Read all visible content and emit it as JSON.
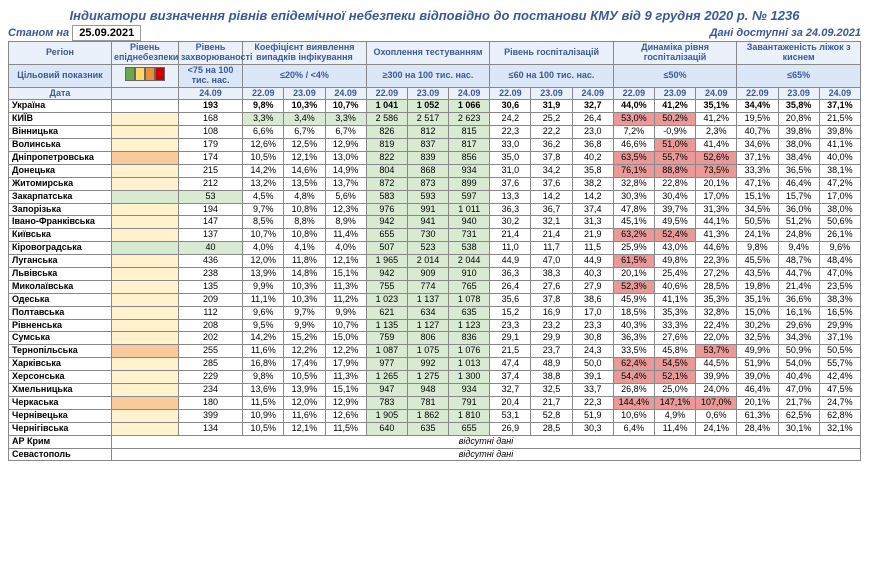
{
  "title": "Індикатори визначення рівнів епідемічної небезпеки відповідно до постанови КМУ від 9 грудня 2020 р. № 1236",
  "asof_label": "Станом на",
  "asof_date": "25.09.2021",
  "avail_label": "Дані доступні за 24.09.2021",
  "headers": {
    "region": "Регіон",
    "level": "Рівень епіднебезпеки",
    "incidence": "Рівень захворюваності",
    "detection": "Коефіцієнт виявлення випадків інфікування",
    "testing": "Охоплення тестуванням",
    "hosp": "Рівень госпіталізацій",
    "hosp_dyn": "Динаміка рівня госпіталізацій",
    "beds": "Завантаженість ліжок з киснем",
    "target": "Цільовий показник",
    "date": "Дата",
    "t_incidence": "<75 на 100 тис. нас.",
    "t_detection": "≤20% / <4%",
    "t_testing": "≥300 на 100 тис. нас.",
    "t_hosp": "≤60 на 100 тис. нас.",
    "t_hosp_dyn": "≤50%",
    "t_beds": "≤65%"
  },
  "dates": {
    "d1": "22.09",
    "d2": "23.09",
    "d3": "24.09"
  },
  "legend_colors": [
    "#6aa84f",
    "#ffd966",
    "#e69138",
    "#cc0000"
  ],
  "highlight": {
    "green": "#d9ead3",
    "yellow": "#fff2cc",
    "orange": "#f9cb9c",
    "red": "#ea9999"
  },
  "nodata_text": "відсутні дані",
  "rows": [
    {
      "name": "Україна",
      "lvl": "",
      "inc": "193",
      "bold": true,
      "det": [
        "9,8%",
        "10,3%",
        "10,7%"
      ],
      "test": [
        "1 041",
        "1 052",
        "1 066"
      ],
      "test_hl": [
        "g",
        "g",
        "g"
      ],
      "hosp": [
        "30,6",
        "31,9",
        "32,7"
      ],
      "dyn": [
        "44,0%",
        "41,2%",
        "35,1%"
      ],
      "dyn_hl": [
        "",
        "",
        ""
      ],
      "bed": [
        "34,4%",
        "35,8%",
        "37,1%"
      ]
    },
    {
      "name": "КИЇВ",
      "lvl": "yellow",
      "inc": "168",
      "det": [
        "3,3%",
        "3,4%",
        "3,3%"
      ],
      "det_hl": [
        "g",
        "g",
        "g"
      ],
      "test": [
        "2 586",
        "2 517",
        "2 623"
      ],
      "test_hl": [
        "g",
        "g",
        "g"
      ],
      "hosp": [
        "24,2",
        "25,2",
        "26,4"
      ],
      "dyn": [
        "53,0%",
        "50,2%",
        "41,2%"
      ],
      "dyn_hl": [
        "r",
        "r",
        ""
      ],
      "bed": [
        "19,5%",
        "20,8%",
        "21,5%"
      ]
    },
    {
      "name": "Вінницька",
      "lvl": "yellow",
      "inc": "108",
      "det": [
        "6,6%",
        "6,7%",
        "6,7%"
      ],
      "test": [
        "826",
        "812",
        "815"
      ],
      "test_hl": [
        "g",
        "g",
        "g"
      ],
      "hosp": [
        "22,3",
        "22,2",
        "23,0"
      ],
      "dyn": [
        "7,2%",
        "-0,9%",
        "2,3%"
      ],
      "dyn_hl": [
        "",
        "",
        ""
      ],
      "bed": [
        "40,7%",
        "39,8%",
        "39,8%"
      ]
    },
    {
      "name": "Волинська",
      "lvl": "yellow",
      "inc": "179",
      "det": [
        "12,6%",
        "12,5%",
        "12,9%"
      ],
      "test": [
        "819",
        "837",
        "817"
      ],
      "test_hl": [
        "g",
        "g",
        "g"
      ],
      "hosp": [
        "33,0",
        "36,2",
        "36,8"
      ],
      "dyn": [
        "46,6%",
        "51,0%",
        "41,4%"
      ],
      "dyn_hl": [
        "",
        "r",
        ""
      ],
      "bed": [
        "34,6%",
        "38,0%",
        "41,1%"
      ]
    },
    {
      "name": "Дніпропетровська",
      "lvl": "orange",
      "inc": "174",
      "det": [
        "10,5%",
        "12,1%",
        "13,0%"
      ],
      "test": [
        "822",
        "839",
        "856"
      ],
      "test_hl": [
        "g",
        "g",
        "g"
      ],
      "hosp": [
        "35,0",
        "37,8",
        "40,2"
      ],
      "dyn": [
        "63,5%",
        "55,7%",
        "52,6%"
      ],
      "dyn_hl": [
        "r",
        "r",
        "r"
      ],
      "bed": [
        "37,1%",
        "38,4%",
        "40,0%"
      ]
    },
    {
      "name": "Донецька",
      "lvl": "yellow",
      "inc": "215",
      "det": [
        "14,2%",
        "14,6%",
        "14,9%"
      ],
      "test": [
        "804",
        "868",
        "934"
      ],
      "test_hl": [
        "g",
        "g",
        "g"
      ],
      "hosp": [
        "31,0",
        "34,2",
        "35,8"
      ],
      "dyn": [
        "76,1%",
        "88,8%",
        "73,5%"
      ],
      "dyn_hl": [
        "r",
        "r",
        "r"
      ],
      "bed": [
        "33,3%",
        "36,5%",
        "38,1%"
      ]
    },
    {
      "name": "Житомирська",
      "lvl": "yellow",
      "inc": "212",
      "det": [
        "13,2%",
        "13,5%",
        "13,7%"
      ],
      "test": [
        "872",
        "873",
        "899"
      ],
      "test_hl": [
        "g",
        "g",
        "g"
      ],
      "hosp": [
        "37,6",
        "37,6",
        "38,2"
      ],
      "dyn": [
        "32,8%",
        "22,8%",
        "20,1%"
      ],
      "dyn_hl": [
        "",
        "",
        ""
      ],
      "bed": [
        "47,1%",
        "46,4%",
        "47,2%"
      ]
    },
    {
      "name": "Закарпатська",
      "lvl": "green",
      "inc": "53",
      "inc_hl": "g",
      "det": [
        "4,5%",
        "4,8%",
        "5,6%"
      ],
      "test": [
        "583",
        "593",
        "597"
      ],
      "test_hl": [
        "g",
        "g",
        "g"
      ],
      "hosp": [
        "13,3",
        "14,2",
        "14,2"
      ],
      "dyn": [
        "30,3%",
        "30,4%",
        "17,0%"
      ],
      "dyn_hl": [
        "",
        "",
        ""
      ],
      "bed": [
        "15,1%",
        "15,7%",
        "17,0%"
      ]
    },
    {
      "name": "Запорізька",
      "lvl": "yellow",
      "inc": "194",
      "det": [
        "9,7%",
        "10,8%",
        "12,3%"
      ],
      "test": [
        "976",
        "991",
        "1 011"
      ],
      "test_hl": [
        "g",
        "g",
        "g"
      ],
      "hosp": [
        "36,3",
        "36,7",
        "37,4"
      ],
      "dyn": [
        "47,8%",
        "39,7%",
        "31,3%"
      ],
      "dyn_hl": [
        "",
        "",
        ""
      ],
      "bed": [
        "34,5%",
        "36,0%",
        "38,0%"
      ]
    },
    {
      "name": "Івано-Франківська",
      "lvl": "yellow",
      "inc": "147",
      "det": [
        "8,5%",
        "8,8%",
        "8,9%"
      ],
      "test": [
        "942",
        "941",
        "940"
      ],
      "test_hl": [
        "g",
        "g",
        "g"
      ],
      "hosp": [
        "30,2",
        "32,1",
        "31,3"
      ],
      "dyn": [
        "45,1%",
        "49,5%",
        "44,1%"
      ],
      "dyn_hl": [
        "",
        "",
        ""
      ],
      "bed": [
        "50,5%",
        "51,2%",
        "50,6%"
      ]
    },
    {
      "name": "Київська",
      "lvl": "yellow",
      "inc": "137",
      "det": [
        "10,7%",
        "10,8%",
        "11,4%"
      ],
      "test": [
        "655",
        "730",
        "731"
      ],
      "test_hl": [
        "g",
        "g",
        "g"
      ],
      "hosp": [
        "21,4",
        "21,4",
        "21,9"
      ],
      "dyn": [
        "63,2%",
        "52,4%",
        "41,3%"
      ],
      "dyn_hl": [
        "r",
        "r",
        ""
      ],
      "bed": [
        "24,1%",
        "24,8%",
        "26,1%"
      ]
    },
    {
      "name": "Кіровоградська",
      "lvl": "green",
      "inc": "40",
      "inc_hl": "g",
      "det": [
        "4,0%",
        "4,1%",
        "4,0%"
      ],
      "test": [
        "507",
        "523",
        "538"
      ],
      "test_hl": [
        "g",
        "g",
        "g"
      ],
      "hosp": [
        "11,0",
        "11,7",
        "11,5"
      ],
      "dyn": [
        "25,9%",
        "43,0%",
        "44,6%"
      ],
      "dyn_hl": [
        "",
        "",
        ""
      ],
      "bed": [
        "9,8%",
        "9,4%",
        "9,6%"
      ]
    },
    {
      "name": "Луганська",
      "lvl": "yellow",
      "inc": "436",
      "det": [
        "12,0%",
        "11,8%",
        "12,1%"
      ],
      "test": [
        "1 965",
        "2 014",
        "2 044"
      ],
      "test_hl": [
        "g",
        "g",
        "g"
      ],
      "hosp": [
        "44,9",
        "47,0",
        "44,9"
      ],
      "dyn": [
        "61,5%",
        "49,8%",
        "22,3%"
      ],
      "dyn_hl": [
        "r",
        "",
        ""
      ],
      "bed": [
        "45,5%",
        "48,7%",
        "48,4%"
      ]
    },
    {
      "name": "Львівська",
      "lvl": "yellow",
      "inc": "238",
      "det": [
        "13,9%",
        "14,8%",
        "15,1%"
      ],
      "test": [
        "942",
        "909",
        "910"
      ],
      "test_hl": [
        "g",
        "g",
        "g"
      ],
      "hosp": [
        "36,3",
        "38,3",
        "40,3"
      ],
      "dyn": [
        "20,1%",
        "25,4%",
        "27,2%"
      ],
      "dyn_hl": [
        "",
        "",
        ""
      ],
      "bed": [
        "43,5%",
        "44,7%",
        "47,0%"
      ]
    },
    {
      "name": "Миколаївська",
      "lvl": "yellow",
      "inc": "135",
      "det": [
        "9,9%",
        "10,3%",
        "11,3%"
      ],
      "test": [
        "755",
        "774",
        "765"
      ],
      "test_hl": [
        "g",
        "g",
        "g"
      ],
      "hosp": [
        "26,4",
        "27,6",
        "27,9"
      ],
      "dyn": [
        "52,3%",
        "40,6%",
        "28,5%"
      ],
      "dyn_hl": [
        "r",
        "",
        ""
      ],
      "bed": [
        "19,8%",
        "21,4%",
        "23,5%"
      ]
    },
    {
      "name": "Одеська",
      "lvl": "yellow",
      "inc": "209",
      "det": [
        "11,1%",
        "10,3%",
        "11,2%"
      ],
      "test": [
        "1 023",
        "1 137",
        "1 078"
      ],
      "test_hl": [
        "g",
        "g",
        "g"
      ],
      "hosp": [
        "35,6",
        "37,8",
        "38,6"
      ],
      "dyn": [
        "45,9%",
        "41,1%",
        "35,3%"
      ],
      "dyn_hl": [
        "",
        "",
        ""
      ],
      "bed": [
        "35,1%",
        "36,6%",
        "38,3%"
      ]
    },
    {
      "name": "Полтавська",
      "lvl": "yellow",
      "inc": "112",
      "det": [
        "9,6%",
        "9,7%",
        "9,9%"
      ],
      "test": [
        "621",
        "634",
        "635"
      ],
      "test_hl": [
        "g",
        "g",
        "g"
      ],
      "hosp": [
        "15,2",
        "16,9",
        "17,0"
      ],
      "dyn": [
        "18,5%",
        "35,3%",
        "32,8%"
      ],
      "dyn_hl": [
        "",
        "",
        ""
      ],
      "bed": [
        "15,0%",
        "16,1%",
        "16,5%"
      ]
    },
    {
      "name": "Рівненська",
      "lvl": "yellow",
      "inc": "208",
      "det": [
        "9,5%",
        "9,9%",
        "10,7%"
      ],
      "test": [
        "1 135",
        "1 127",
        "1 123"
      ],
      "test_hl": [
        "g",
        "g",
        "g"
      ],
      "hosp": [
        "23,3",
        "23,2",
        "23,3"
      ],
      "dyn": [
        "40,3%",
        "33,3%",
        "22,4%"
      ],
      "dyn_hl": [
        "",
        "",
        ""
      ],
      "bed": [
        "30,2%",
        "29,6%",
        "29,9%"
      ]
    },
    {
      "name": "Сумська",
      "lvl": "yellow",
      "inc": "202",
      "det": [
        "14,2%",
        "15,2%",
        "15,0%"
      ],
      "test": [
        "759",
        "806",
        "836"
      ],
      "test_hl": [
        "g",
        "g",
        "g"
      ],
      "hosp": [
        "29,1",
        "29,9",
        "30,8"
      ],
      "dyn": [
        "36,3%",
        "27,6%",
        "22,0%"
      ],
      "dyn_hl": [
        "",
        "",
        ""
      ],
      "bed": [
        "32,5%",
        "34,3%",
        "37,1%"
      ]
    },
    {
      "name": "Тернопільська",
      "lvl": "orange",
      "inc": "255",
      "det": [
        "11,6%",
        "12,2%",
        "12,2%"
      ],
      "test": [
        "1 087",
        "1 075",
        "1 076"
      ],
      "test_hl": [
        "g",
        "g",
        "g"
      ],
      "hosp": [
        "21,5",
        "23,7",
        "24,3"
      ],
      "dyn": [
        "33,5%",
        "45,8%",
        "53,7%"
      ],
      "dyn_hl": [
        "",
        "",
        "r"
      ],
      "bed": [
        "49,9%",
        "50,9%",
        "50,5%"
      ]
    },
    {
      "name": "Харківська",
      "lvl": "yellow",
      "inc": "285",
      "det": [
        "16,8%",
        "17,4%",
        "17,9%"
      ],
      "test": [
        "977",
        "992",
        "1 013"
      ],
      "test_hl": [
        "g",
        "g",
        "g"
      ],
      "hosp": [
        "47,4",
        "48,9",
        "50,0"
      ],
      "dyn": [
        "62,4%",
        "54,5%",
        "44,5%"
      ],
      "dyn_hl": [
        "r",
        "r",
        ""
      ],
      "bed": [
        "51,9%",
        "54,0%",
        "55,7%"
      ]
    },
    {
      "name": "Херсонська",
      "lvl": "yellow",
      "inc": "229",
      "det": [
        "9,8%",
        "10,5%",
        "11,3%"
      ],
      "test": [
        "1 265",
        "1 275",
        "1 300"
      ],
      "test_hl": [
        "g",
        "g",
        "g"
      ],
      "hosp": [
        "37,4",
        "38,8",
        "39,1"
      ],
      "dyn": [
        "54,4%",
        "52,1%",
        "39,9%"
      ],
      "dyn_hl": [
        "r",
        "r",
        ""
      ],
      "bed": [
        "39,0%",
        "40,4%",
        "42,4%"
      ]
    },
    {
      "name": "Хмельницька",
      "lvl": "yellow",
      "inc": "234",
      "det": [
        "13,6%",
        "13,9%",
        "15,1%"
      ],
      "test": [
        "947",
        "948",
        "934"
      ],
      "test_hl": [
        "g",
        "g",
        "g"
      ],
      "hosp": [
        "32,7",
        "32,5",
        "33,7"
      ],
      "dyn": [
        "26,8%",
        "25,0%",
        "24,0%"
      ],
      "dyn_hl": [
        "",
        "",
        ""
      ],
      "bed": [
        "46,4%",
        "47,0%",
        "47,5%"
      ]
    },
    {
      "name": "Черкаська",
      "lvl": "orange",
      "inc": "180",
      "det": [
        "11,5%",
        "12,0%",
        "12,9%"
      ],
      "test": [
        "783",
        "781",
        "791"
      ],
      "test_hl": [
        "g",
        "g",
        "g"
      ],
      "hosp": [
        "20,4",
        "21,7",
        "22,3"
      ],
      "dyn": [
        "144,4%",
        "147,1%",
        "107,0%"
      ],
      "dyn_hl": [
        "r",
        "r",
        "r"
      ],
      "bed": [
        "20,1%",
        "21,7%",
        "24,7%"
      ]
    },
    {
      "name": "Чернівецька",
      "lvl": "yellow",
      "inc": "399",
      "det": [
        "10,9%",
        "11,6%",
        "12,6%"
      ],
      "test": [
        "1 905",
        "1 862",
        "1 810"
      ],
      "test_hl": [
        "g",
        "g",
        "g"
      ],
      "hosp": [
        "53,1",
        "52,8",
        "51,9"
      ],
      "dyn": [
        "10,6%",
        "4,9%",
        "0,6%"
      ],
      "dyn_hl": [
        "",
        "",
        ""
      ],
      "bed": [
        "61,3%",
        "62,5%",
        "62,8%"
      ]
    },
    {
      "name": "Чернігівська",
      "lvl": "yellow",
      "inc": "134",
      "det": [
        "10,5%",
        "12,1%",
        "11,5%"
      ],
      "test": [
        "640",
        "635",
        "655"
      ],
      "test_hl": [
        "g",
        "g",
        "g"
      ],
      "hosp": [
        "26,9",
        "28,5",
        "30,3"
      ],
      "dyn": [
        "6,4%",
        "11,4%",
        "24,1%"
      ],
      "dyn_hl": [
        "",
        "",
        ""
      ],
      "bed": [
        "28,4%",
        "30,1%",
        "32,1%"
      ]
    }
  ],
  "nodata_rows": [
    "АР Крим",
    "Севастополь"
  ]
}
